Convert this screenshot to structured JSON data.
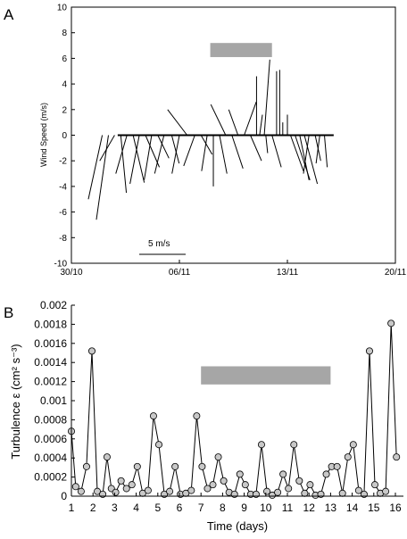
{
  "chart_data": [
    {
      "panel_label": "A",
      "type": "stick-vector",
      "xlabel": "",
      "ylabel": "Wind Speed (m/s)",
      "xlim": [
        "30/10",
        "20/11"
      ],
      "ylim": [
        -10,
        10
      ],
      "x_ticks": [
        "30/10",
        "06/11",
        "13/11",
        "20/11"
      ],
      "y_ticks": [
        "10",
        "8",
        "6",
        "4",
        "2",
        "0",
        "-2",
        "-4",
        "-6",
        "-8",
        "-10"
      ],
      "scale_bar_label": "5 m/s",
      "highlight_bar": {
        "x_start": "08/11",
        "x_end": "12/11",
        "color": "#a6a6a6"
      },
      "baseline": {
        "x_start": "02/11",
        "x_end": "16/11",
        "y": 0
      },
      "vectors": [
        {
          "x": 2.0,
          "u": -1.5,
          "v": -5.0
        },
        {
          "x": 2.4,
          "u": -1.3,
          "v": -6.6
        },
        {
          "x": 2.8,
          "u": -1.6,
          "v": -2.0
        },
        {
          "x": 3.2,
          "u": 0.6,
          "v": -4.5
        },
        {
          "x": 3.6,
          "u": -1.2,
          "v": -3.0
        },
        {
          "x": 4.0,
          "u": 1.2,
          "v": -3.7
        },
        {
          "x": 4.4,
          "u": -1.0,
          "v": -3.8
        },
        {
          "x": 4.8,
          "u": 1.5,
          "v": -2.5
        },
        {
          "x": 5.2,
          "u": -0.8,
          "v": -3.5
        },
        {
          "x": 5.6,
          "u": 1.2,
          "v": -1.8
        },
        {
          "x": 6.0,
          "u": -1.0,
          "v": -3.0
        },
        {
          "x": 6.5,
          "u": 0.8,
          "v": -2.2
        },
        {
          "x": 7.0,
          "u": -0.8,
          "v": -3.0
        },
        {
          "x": 7.5,
          "u": -2.1,
          "v": 2.0
        },
        {
          "x": 8.0,
          "u": -1.2,
          "v": -2.4
        },
        {
          "x": 8.4,
          "u": 1.2,
          "v": -1.5
        },
        {
          "x": 8.8,
          "u": -0.6,
          "v": -2.8
        },
        {
          "x": 9.2,
          "u": 0.0,
          "v": -4.0
        },
        {
          "x": 9.6,
          "u": 0.8,
          "v": -3.0
        },
        {
          "x": 10.0,
          "u": -1.6,
          "v": 2.4
        },
        {
          "x": 10.4,
          "u": 1.2,
          "v": -2.6
        },
        {
          "x": 10.8,
          "u": -1.0,
          "v": 2.0
        },
        {
          "x": 11.2,
          "u": 1.3,
          "v": 2.6
        },
        {
          "x": 11.6,
          "u": 1.2,
          "v": -2.0
        },
        {
          "x": 12.0,
          "u": 0.0,
          "v": 4.6
        },
        {
          "x": 12.2,
          "u": 0.3,
          "v": 1.6
        },
        {
          "x": 12.5,
          "u": 0.6,
          "v": 5.9
        },
        {
          "x": 12.6,
          "u": 0.2,
          "v": -1.4
        },
        {
          "x": 13.0,
          "u": 1.0,
          "v": -2.5
        },
        {
          "x": 13.3,
          "u": 0.0,
          "v": 5.0
        },
        {
          "x": 13.5,
          "u": 0.0,
          "v": 5.1
        },
        {
          "x": 13.7,
          "u": 0.0,
          "v": 1.0
        },
        {
          "x": 14.0,
          "u": 0.0,
          "v": 1.6
        },
        {
          "x": 14.2,
          "u": 1.4,
          "v": -2.8
        },
        {
          "x": 14.5,
          "u": 1.6,
          "v": -3.5
        },
        {
          "x": 14.8,
          "u": 1.0,
          "v": -3.5
        },
        {
          "x": 15.1,
          "u": 1.4,
          "v": -3.8
        },
        {
          "x": 15.4,
          "u": -0.6,
          "v": -3.0
        },
        {
          "x": 15.8,
          "u": 0.6,
          "v": -2.0
        },
        {
          "x": 16.1,
          "u": -0.4,
          "v": -2.2
        },
        {
          "x": 16.4,
          "u": 0.3,
          "v": -2.5
        }
      ]
    },
    {
      "panel_label": "B",
      "type": "line",
      "xlabel": "Time (days)",
      "ylabel": "Turbulence ε (cm² s⁻³)",
      "xlim": [
        1,
        16
      ],
      "ylim": [
        0,
        0.002
      ],
      "x_ticks": [
        "1",
        "2",
        "3",
        "4",
        "5",
        "6",
        "7",
        "8",
        "9",
        "10",
        "11",
        "12",
        "13",
        "14",
        "15",
        "16"
      ],
      "y_ticks": [
        "0.002",
        "0.0018",
        "0.0016",
        "0.0014",
        "0.0012",
        "0.001",
        "0.0008",
        "0.0006",
        "0.0004",
        "0.0002",
        "0"
      ],
      "highlight_bar": {
        "x_start": 7,
        "x_end": 13,
        "color": "#a6a6a6"
      },
      "marker_color": "#c8c8c8",
      "x": [
        1.0,
        1.2,
        1.45,
        1.7,
        1.95,
        2.2,
        2.45,
        2.65,
        2.85,
        3.05,
        3.3,
        3.55,
        3.8,
        4.05,
        4.3,
        4.55,
        4.8,
        5.05,
        5.3,
        5.55,
        5.8,
        6.05,
        6.3,
        6.55,
        6.8,
        7.05,
        7.3,
        7.55,
        7.8,
        8.05,
        8.3,
        8.55,
        8.8,
        9.05,
        9.3,
        9.55,
        9.8,
        10.05,
        10.3,
        10.55,
        10.8,
        11.05,
        11.3,
        11.55,
        11.8,
        12.05,
        12.3,
        12.55,
        12.8,
        13.05,
        13.3,
        13.55,
        13.8,
        14.05,
        14.3,
        14.55,
        14.8,
        15.05,
        15.3,
        15.55,
        15.8,
        16.05
      ],
      "y": [
        0.00068,
        0.0001,
        5e-05,
        0.00031,
        0.00152,
        5e-05,
        2e-05,
        0.00041,
        8e-05,
        4e-05,
        0.00016,
        8e-05,
        0.00012,
        0.00031,
        3e-05,
        6e-05,
        0.00084,
        0.00054,
        2e-05,
        5e-05,
        0.00031,
        2e-05,
        3e-05,
        6e-05,
        0.00084,
        0.00031,
        8e-05,
        0.00012,
        0.00041,
        0.00016,
        4e-05,
        2e-05,
        0.00023,
        0.00012,
        2e-05,
        2e-05,
        0.00054,
        5e-05,
        1e-05,
        4e-05,
        0.00023,
        8e-05,
        0.00054,
        0.00016,
        3e-05,
        0.00012,
        1e-05,
        2e-05,
        0.00023,
        0.00031,
        0.00031,
        3e-05,
        0.00041,
        0.00054,
        6e-05,
        2e-05,
        0.00152,
        0.00012,
        3e-05,
        5e-05,
        0.00181,
        0.00041
      ]
    }
  ]
}
